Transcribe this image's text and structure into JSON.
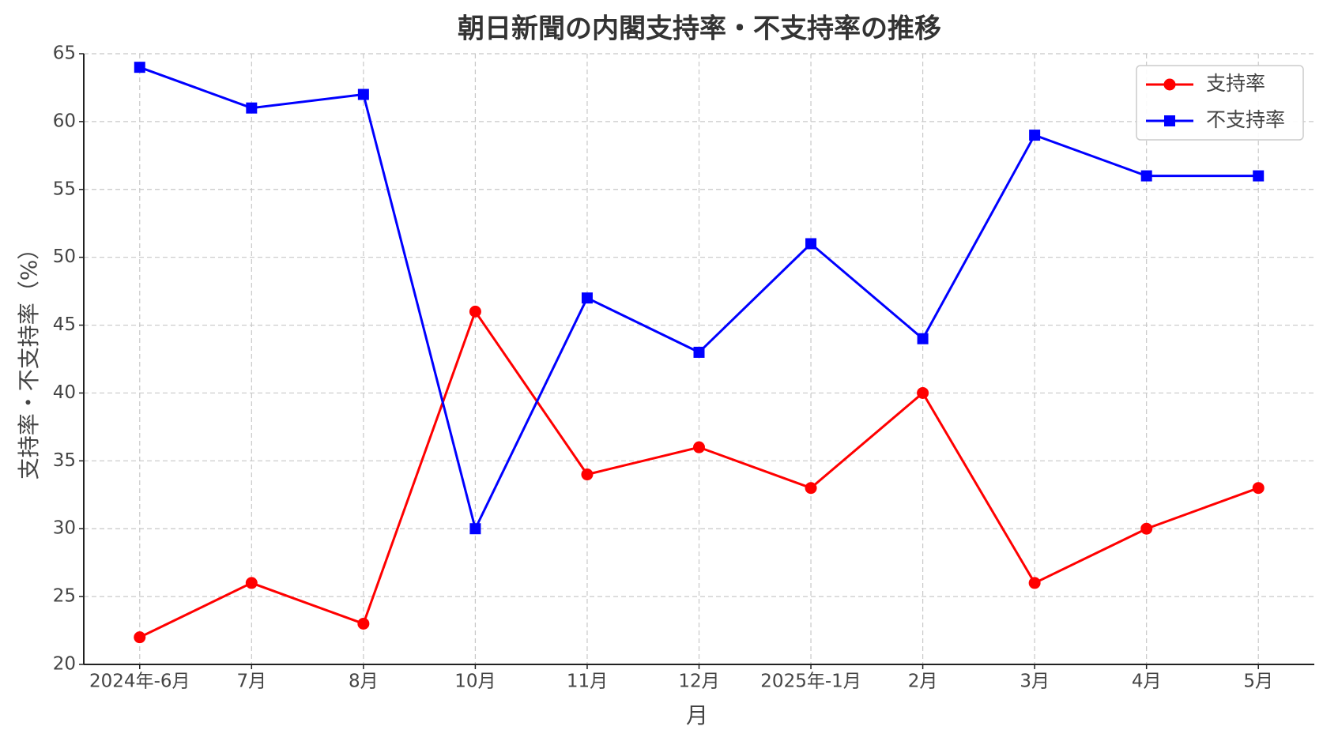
{
  "chart_data": {
    "type": "line",
    "title": "朝日新聞の内閣支持率・不支持率の推移",
    "x_label": "月",
    "y_label": "支持率・不支持率（%）",
    "categories": [
      "2024年-6月",
      "7月",
      "8月",
      "10月",
      "11月",
      "12月",
      "2025年-1月",
      "2月",
      "3月",
      "4月",
      "5月"
    ],
    "series": [
      {
        "name": "支持率",
        "color": "#ff0000",
        "marker": "circle",
        "values": [
          22,
          26,
          23,
          46,
          34,
          36,
          33,
          40,
          26,
          30,
          33
        ]
      },
      {
        "name": "不支持率",
        "color": "#0000ff",
        "marker": "square",
        "values": [
          64,
          61,
          62,
          30,
          47,
          43,
          51,
          44,
          59,
          56,
          56
        ]
      }
    ],
    "ylim": [
      20,
      65
    ],
    "yticks": [
      20,
      25,
      30,
      35,
      40,
      45,
      50,
      55,
      60,
      65
    ],
    "grid": true,
    "legend": "upper right"
  }
}
